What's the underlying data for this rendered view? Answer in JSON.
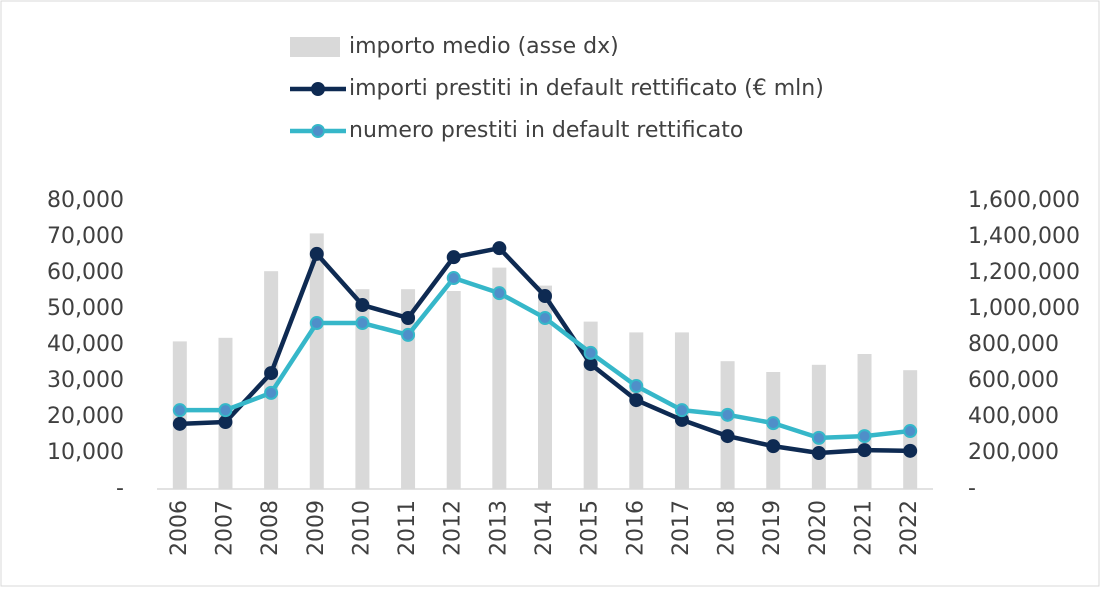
{
  "chart_data": {
    "type": "bar-line",
    "categories": [
      "2006",
      "2007",
      "2008",
      "2009",
      "2010",
      "2011",
      "2012",
      "2013",
      "2014",
      "2015",
      "2016",
      "2017",
      "2018",
      "2019",
      "2020",
      "2021",
      "2022"
    ],
    "series": [
      {
        "name": "importo medio (asse dx)",
        "type": "bar",
        "axis": "y2",
        "color": "#d9d9d9",
        "values": [
          820000,
          840000,
          1210000,
          1420000,
          1110000,
          1110000,
          1100000,
          1230000,
          1130000,
          930000,
          870000,
          870000,
          710000,
          650000,
          690000,
          750000,
          660000
        ]
      },
      {
        "name": "importi prestiti in default rettificato (€ mln)",
        "type": "line",
        "color": "#0e2a52",
        "values": [
          18100,
          18600,
          32200,
          65300,
          51100,
          47500,
          64400,
          66900,
          53600,
          34700,
          24700,
          19200,
          14700,
          11900,
          10000,
          10800,
          10600
        ]
      },
      {
        "name": "numero prestiti in default rettificato",
        "type": "line",
        "color": "#36b7c9",
        "values": [
          21900,
          21900,
          26700,
          46100,
          46100,
          42800,
          58600,
          54400,
          47500,
          37800,
          28600,
          21900,
          20600,
          18300,
          14200,
          14700,
          16100
        ]
      }
    ],
    "ylim": [
      0,
      80000
    ],
    "yticks": [
      {
        "value": 0,
        "label": "-"
      },
      {
        "value": 10000,
        "label": "10,000"
      },
      {
        "value": 20000,
        "label": "20,000"
      },
      {
        "value": 30000,
        "label": "30,000"
      },
      {
        "value": 40000,
        "label": "40,000"
      },
      {
        "value": 50000,
        "label": "50,000"
      },
      {
        "value": 60000,
        "label": "60,000"
      },
      {
        "value": 70000,
        "label": "70,000"
      },
      {
        "value": 80000,
        "label": "80,000"
      }
    ],
    "y2lim": [
      0,
      1600000
    ],
    "y2ticks": [
      {
        "value": 0,
        "label": "-"
      },
      {
        "value": 200000,
        "label": "200,000"
      },
      {
        "value": 400000,
        "label": "400,000"
      },
      {
        "value": 600000,
        "label": "600,000"
      },
      {
        "value": 800000,
        "label": "800,000"
      },
      {
        "value": 1000000,
        "label": "1,000,000"
      },
      {
        "value": 1200000,
        "label": "1,200,000"
      },
      {
        "value": 1400000,
        "label": "1,400,000"
      },
      {
        "value": 1600000,
        "label": "1,600,000"
      }
    ]
  }
}
